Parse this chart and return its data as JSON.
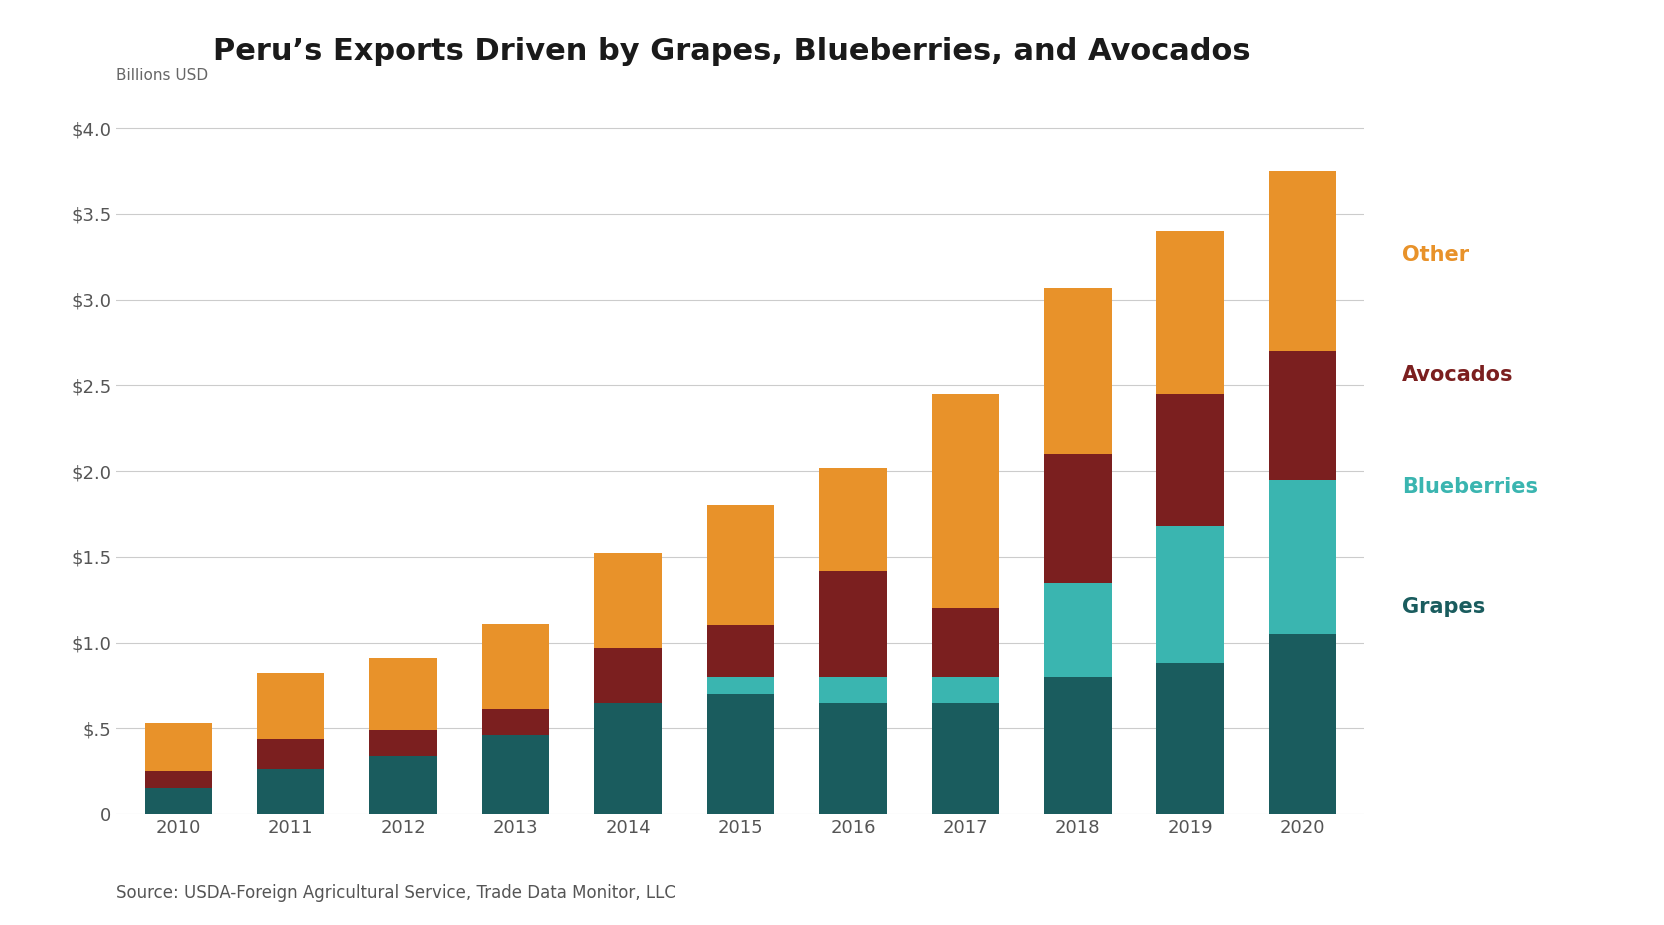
{
  "years": [
    2010,
    2011,
    2012,
    2013,
    2014,
    2015,
    2016,
    2017,
    2018,
    2019,
    2020
  ],
  "grapes": [
    0.15,
    0.26,
    0.34,
    0.46,
    0.65,
    0.7,
    0.65,
    0.65,
    0.8,
    0.88,
    1.05
  ],
  "blueberries": [
    0.0,
    0.0,
    0.0,
    0.0,
    0.0,
    0.1,
    0.15,
    0.15,
    0.55,
    0.8,
    0.9
  ],
  "avocados": [
    0.1,
    0.18,
    0.15,
    0.15,
    0.32,
    0.3,
    0.62,
    0.4,
    0.75,
    0.77,
    0.75
  ],
  "other": [
    0.28,
    0.38,
    0.42,
    0.5,
    0.55,
    0.7,
    0.6,
    1.25,
    0.97,
    0.95,
    1.05
  ],
  "colors": {
    "grapes": "#1a5c5e",
    "blueberries": "#3ab5b0",
    "avocados": "#7b1f1f",
    "other": "#e8922a"
  },
  "title": "Peru’s Exports Driven by Grapes, Blueberries, and Avocados",
  "ylabel": "Billions USD",
  "source": "Source: USDA-Foreign Agricultural Service, Trade Data Monitor, LLC",
  "ylim": [
    0,
    4.1
  ],
  "yticks": [
    0,
    0.5,
    1.0,
    1.5,
    2.0,
    2.5,
    3.0,
    3.5,
    4.0
  ],
  "legend_labels": [
    "Other",
    "Avocados",
    "Blueberries",
    "Grapes"
  ],
  "legend_colors": [
    "#e8922a",
    "#7b1f1f",
    "#3ab5b0",
    "#1a5c5e"
  ],
  "title_fontsize": 22,
  "label_fontsize": 11,
  "tick_fontsize": 13,
  "source_fontsize": 12,
  "legend_fontsize": 15,
  "background_color": "#ffffff"
}
